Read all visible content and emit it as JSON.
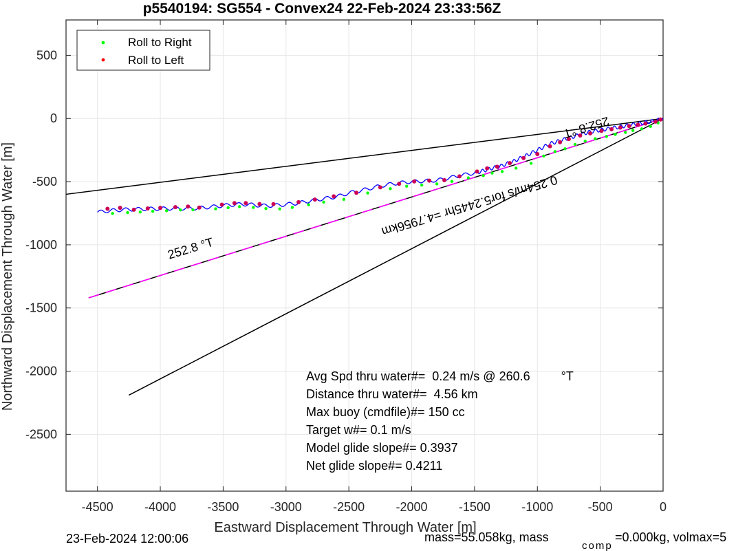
{
  "chart_data": {
    "type": "line",
    "title": "p5540194: SG554 - Convex24 22-Feb-2024 23:33:56Z",
    "xlabel": "Eastward Displacement Through Water [m]",
    "ylabel": "Northward Displacement Through Water [m]",
    "xlim": [
      -4750,
      0
    ],
    "ylim": [
      -2950,
      780
    ],
    "xticks": [
      -4500,
      -4000,
      -3500,
      -3000,
      -2500,
      -2000,
      -1500,
      -1000,
      -500,
      0
    ],
    "yticks": [
      -2500,
      -2000,
      -1500,
      -1000,
      -500,
      0,
      500
    ],
    "grid": true,
    "legend": {
      "position": "top-left",
      "entries": [
        {
          "label": "Roll to Right",
          "color": "#00ff00"
        },
        {
          "label": "Roll to Left",
          "color": "#ff0000"
        }
      ]
    },
    "lines": [
      {
        "x": [
          -4750,
          0
        ],
        "y": [
          -600,
          0
        ],
        "color": "#000000",
        "dash": false
      },
      {
        "x": [
          -4250,
          0
        ],
        "y": [
          -2190,
          0
        ],
        "color": "#000000",
        "dash": false
      },
      {
        "x": [
          -4570,
          0
        ],
        "y": [
          -1420,
          0
        ],
        "color": "#000000",
        "dash": false
      },
      {
        "x": [
          -4570,
          0
        ],
        "y": [
          -1420,
          0
        ],
        "color": "#ff00ff",
        "dash": true
      }
    ],
    "track": {
      "color": "#0000ff",
      "x": [
        -4500,
        -4400,
        -4300,
        -4200,
        -4100,
        -4000,
        -3900,
        -3800,
        -3700,
        -3600,
        -3500,
        -3400,
        -3300,
        -3200,
        -3100,
        -3000,
        -2900,
        -2800,
        -2700,
        -2600,
        -2500,
        -2400,
        -2300,
        -2200,
        -2100,
        -2000,
        -1900,
        -1800,
        -1700,
        -1600,
        -1500,
        -1450,
        -1400,
        -1350,
        -1300,
        -1250,
        -1200,
        -1150,
        -1100,
        -1050,
        -1000,
        -950,
        -900,
        -850,
        -800,
        -750,
        -700,
        -650,
        -600,
        -550,
        -500,
        -450,
        -400,
        -350,
        -300,
        -250,
        -200,
        -150,
        -100,
        -50,
        0
      ],
      "y": [
        -742,
        -730,
        -722,
        -718,
        -715,
        -714,
        -712,
        -712,
        -710,
        -700,
        -690,
        -680,
        -680,
        -690,
        -690,
        -680,
        -670,
        -650,
        -635,
        -620,
        -590,
        -570,
        -545,
        -525,
        -510,
        -500,
        -495,
        -490,
        -470,
        -450,
        -430,
        -420,
        -405,
        -390,
        -380,
        -360,
        -345,
        -320,
        -300,
        -275,
        -250,
        -225,
        -200,
        -185,
        -170,
        -155,
        -140,
        -125,
        -110,
        -100,
        -92,
        -84,
        -75,
        -67,
        -58,
        -50,
        -42,
        -33,
        -25,
        -15,
        0
      ],
      "wave_amplitude": 28
    },
    "roll_left_points": {
      "x": [
        -4420,
        -4320,
        -4210,
        -4100,
        -4000,
        -3880,
        -3780,
        -3690,
        -3510,
        -3410,
        -3320,
        -3210,
        -3100,
        -2900,
        -2770,
        -2620,
        -2440,
        -2250,
        -2100,
        -1980,
        -1860,
        -1740,
        -1620,
        -1480,
        -1400,
        -1320,
        -1220,
        -1110,
        -1000,
        -900,
        -820,
        -750,
        -660,
        -580,
        -490,
        -410,
        -340,
        -270,
        -200,
        -140,
        -60,
        -20
      ],
      "y": [
        -715,
        -707,
        -722,
        -712,
        -708,
        -702,
        -697,
        -705,
        -682,
        -670,
        -670,
        -677,
        -678,
        -662,
        -642,
        -616,
        -588,
        -545,
        -517,
        -498,
        -492,
        -488,
        -458,
        -420,
        -395,
        -382,
        -353,
        -313,
        -282,
        -220,
        -188,
        -163,
        -135,
        -118,
        -98,
        -85,
        -72,
        -60,
        -50,
        -40,
        -25,
        -8
      ]
    },
    "roll_right_points": {
      "x": [
        -4380,
        -4260,
        -4160,
        -4060,
        -3950,
        -3840,
        -3740,
        -3560,
        -3460,
        -3370,
        -3260,
        -3160,
        -3050,
        -2950,
        -2820,
        -2700,
        -2540,
        -2350,
        -2170,
        -2040,
        -1920,
        -1800,
        -1680,
        -1550,
        -1430,
        -1360,
        -1280,
        -1170,
        -1050,
        -950,
        -860,
        -780,
        -700,
        -620,
        -540,
        -450,
        -380,
        -300,
        -240,
        -170,
        -100,
        -40
      ],
      "y": [
        -752,
        -745,
        -740,
        -735,
        -730,
        -724,
        -723,
        -715,
        -706,
        -698,
        -704,
        -713,
        -716,
        -704,
        -683,
        -662,
        -640,
        -590,
        -556,
        -536,
        -527,
        -518,
        -498,
        -470,
        -452,
        -432,
        -420,
        -393,
        -355,
        -297,
        -262,
        -240,
        -205,
        -180,
        -160,
        -142,
        -126,
        -110,
        -95,
        -82,
        -63,
        -35
      ]
    },
    "annotations": [
      {
        "text": "252.8 °T",
        "x": -3750,
        "y": -1060,
        "rotate": -16.7
      },
      {
        "text": "0.254m/s for5.2445hr =4.7956km",
        "x": -1550,
        "y": -660,
        "rotate": 163.3
      },
      {
        "text": "252.8 °T",
        "x": -620,
        "y": -40,
        "rotate": 163.3
      }
    ],
    "stats": [
      "Avg Spd thru water#=  0.24 m/s @ 260.6         °T",
      "Distance thru water#=  4.56 km",
      "Max buoy (cmdfile)#= 150 cc",
      "Target w#= 0.1 m/s",
      "Model glide slope#= 0.3937",
      "Net glide slope#= 0.4211"
    ]
  },
  "footer": {
    "left": "23-Feb-2024 12:00:06",
    "right": "mass=55.058kg, mass",
    "sub": "comp",
    "right2": "=0.000kg, volmax=5"
  }
}
